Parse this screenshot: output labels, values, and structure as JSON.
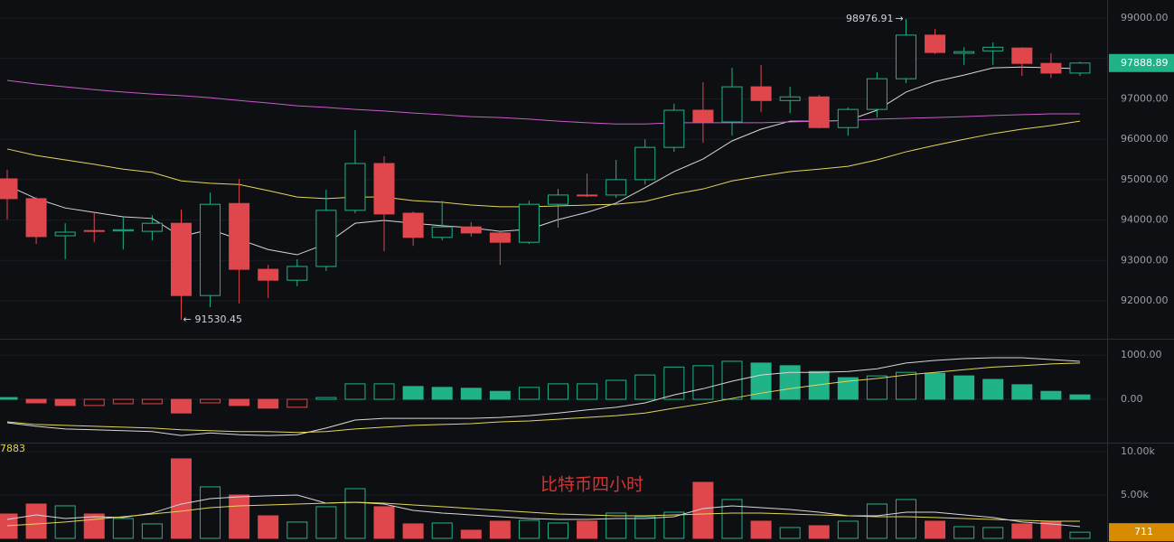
{
  "chart_data": [
    {
      "type": "candlestick",
      "open": [
        95020,
        94530,
        93610,
        93740,
        93730,
        93720,
        93920,
        92130,
        94410,
        92780,
        92510,
        92850,
        94240,
        95400,
        94170,
        93570,
        93830,
        93680,
        93450,
        94390,
        94620,
        94620,
        95000,
        95800,
        96720,
        96430,
        97300,
        96960,
        97050,
        96290,
        96740,
        97500,
        98580,
        98130,
        98190,
        98260,
        97880,
        97640
      ],
      "high": [
        95240,
        94570,
        93920,
        94190,
        94080,
        94120,
        94260,
        94680,
        95020,
        92890,
        93030,
        94750,
        96230,
        95580,
        94210,
        94480,
        93950,
        93720,
        94480,
        94770,
        95150,
        95490,
        96000,
        96880,
        97410,
        97770,
        97840,
        97300,
        97100,
        96790,
        97660,
        98976.91,
        98730,
        98280,
        98400,
        98280,
        98130,
        97920
      ],
      "low": [
        94010,
        93410,
        93030,
        93450,
        93270,
        93500,
        91530.45,
        91840,
        91930,
        92070,
        92360,
        92740,
        94170,
        93230,
        93360,
        93500,
        93590,
        92890,
        93410,
        93810,
        94570,
        94550,
        94880,
        95690,
        95910,
        96090,
        96670,
        96650,
        96270,
        96090,
        96540,
        97390,
        98110,
        97840,
        97840,
        97570,
        97520,
        97570
      ],
      "close": [
        94530,
        93590,
        93700,
        93720,
        93760,
        93920,
        92130,
        94390,
        92780,
        92510,
        92850,
        94240,
        95400,
        94150,
        93570,
        93830,
        93680,
        93450,
        94390,
        94620,
        94600,
        95000,
        95800,
        96720,
        96430,
        97300,
        96960,
        97050,
        96290,
        96740,
        97500,
        98580,
        98150,
        98170,
        98280,
        97880,
        97640,
        97888.89
      ],
      "up_color": "#20b387",
      "down_color": "#e0474c",
      "lines": [
        {
          "color": "#d8d8d8",
          "values": [
            94860,
            94530,
            94300,
            94190,
            94080,
            94040,
            93590,
            93770,
            93520,
            93270,
            93140,
            93410,
            93920,
            93990,
            93920,
            93860,
            93810,
            93720,
            93770,
            94010,
            94190,
            94420,
            94800,
            95200,
            95510,
            95960,
            96250,
            96450,
            96450,
            96470,
            96720,
            97170,
            97430,
            97590,
            97770,
            97790,
            97770,
            97750
          ]
        },
        {
          "color": "#e3d65a",
          "values": [
            95760,
            95600,
            95490,
            95380,
            95260,
            95180,
            94970,
            94910,
            94880,
            94730,
            94570,
            94530,
            94570,
            94570,
            94480,
            94440,
            94370,
            94330,
            94330,
            94350,
            94370,
            94390,
            94460,
            94640,
            94770,
            94970,
            95090,
            95200,
            95260,
            95330,
            95490,
            95690,
            95850,
            96000,
            96140,
            96250,
            96340,
            96450
          ]
        },
        {
          "color": "#c95bc9",
          "values": [
            97460,
            97370,
            97300,
            97230,
            97170,
            97120,
            97080,
            97030,
            96960,
            96900,
            96830,
            96790,
            96740,
            96700,
            96650,
            96610,
            96560,
            96540,
            96500,
            96450,
            96410,
            96380,
            96380,
            96410,
            96410,
            96410,
            96410,
            96430,
            96450,
            96470,
            96500,
            96520,
            96540,
            96560,
            96590,
            96610,
            96630,
            96630
          ]
        }
      ],
      "ylim": [
        91060,
        99450
      ],
      "yticks": [
        {
          "value": 92000,
          "label": "92000.00"
        },
        {
          "value": 93000,
          "label": "93000.00"
        },
        {
          "value": 94000,
          "label": "94000.00"
        },
        {
          "value": 95000,
          "label": "95000.00"
        },
        {
          "value": 96000,
          "label": "96000.00"
        },
        {
          "value": 97000,
          "label": "97000.00"
        },
        {
          "value": 98000,
          "label": "98000.00"
        },
        {
          "value": 99000,
          "label": "99000.00"
        }
      ],
      "grid": true
    },
    {
      "type": "macd",
      "values": [
        40,
        -80,
        -140,
        -140,
        -100,
        -100,
        -310,
        -80,
        -140,
        -200,
        -180,
        40,
        350,
        350,
        290,
        270,
        250,
        180,
        270,
        350,
        350,
        430,
        550,
        730,
        760,
        860,
        820,
        760,
        630,
        490,
        530,
        610,
        590,
        530,
        450,
        330,
        180,
        100
      ],
      "up_color": "#20b387",
      "down_color": "#e0474c",
      "lines": [
        {
          "color": "#d8d8d8",
          "values": [
            -530,
            -610,
            -670,
            -690,
            -710,
            -730,
            -820,
            -760,
            -800,
            -820,
            -800,
            -650,
            -470,
            -430,
            -430,
            -430,
            -430,
            -410,
            -370,
            -310,
            -240,
            -180,
            -80,
            100,
            240,
            410,
            550,
            610,
            610,
            630,
            690,
            820,
            880,
            920,
            940,
            940,
            900,
            860
          ]
        },
        {
          "color": "#e3d65a",
          "values": [
            -510,
            -570,
            -590,
            -610,
            -630,
            -650,
            -690,
            -710,
            -730,
            -730,
            -750,
            -730,
            -670,
            -630,
            -590,
            -570,
            -550,
            -510,
            -490,
            -450,
            -410,
            -370,
            -310,
            -200,
            -100,
            20,
            140,
            240,
            330,
            410,
            470,
            550,
            610,
            670,
            730,
            760,
            800,
            820
          ]
        }
      ],
      "ylim": [
        -980,
        1370
      ],
      "yticks": [
        {
          "value": 0,
          "label": "0.00"
        },
        {
          "value": 1000,
          "label": "1000.00"
        }
      ],
      "grid": true
    },
    {
      "type": "bar",
      "values": [
        2810,
        3960,
        3750,
        2810,
        2290,
        1670,
        9170,
        5940,
        5000,
        2600,
        1880,
        3650,
        5730,
        3650,
        1670,
        1770,
        940,
        1980,
        2080,
        1770,
        1980,
        2920,
        2500,
        3020,
        6460,
        4480,
        1980,
        1250,
        1460,
        1980,
        3960,
        4480,
        1980,
        1350,
        1250,
        1670,
        1880,
        711
      ],
      "up_color": "#20b387",
      "down_color": "#e0474c",
      "lines": [
        {
          "color": "#d8d8d8",
          "values": [
            2190,
            2710,
            2290,
            2500,
            2400,
            2920,
            3960,
            4580,
            4790,
            4900,
            5000,
            4060,
            4170,
            3960,
            3230,
            2920,
            2710,
            2500,
            2290,
            2190,
            2190,
            2290,
            2290,
            2500,
            3440,
            3750,
            3540,
            3330,
            3020,
            2600,
            2600,
            3020,
            3020,
            2710,
            2400,
            1880,
            1670,
            1350
          ]
        },
        {
          "color": "#e3d65a",
          "values": [
            1460,
            1670,
            1880,
            2190,
            2500,
            2810,
            3130,
            3540,
            3750,
            3850,
            3960,
            4060,
            4170,
            4060,
            3850,
            3650,
            3440,
            3230,
            3020,
            2810,
            2710,
            2600,
            2600,
            2710,
            2810,
            2920,
            2920,
            2810,
            2710,
            2600,
            2500,
            2500,
            2400,
            2290,
            2190,
            2080,
            1980,
            1980
          ]
        }
      ],
      "ylim": [
        -420,
        11040
      ],
      "yticks": [
        {
          "value": 5000,
          "label": "5.00k"
        },
        {
          "value": 10000,
          "label": "10.00k"
        }
      ],
      "grid": true,
      "annotation": "比特币四小时",
      "corner_label": "7883"
    }
  ]
}
